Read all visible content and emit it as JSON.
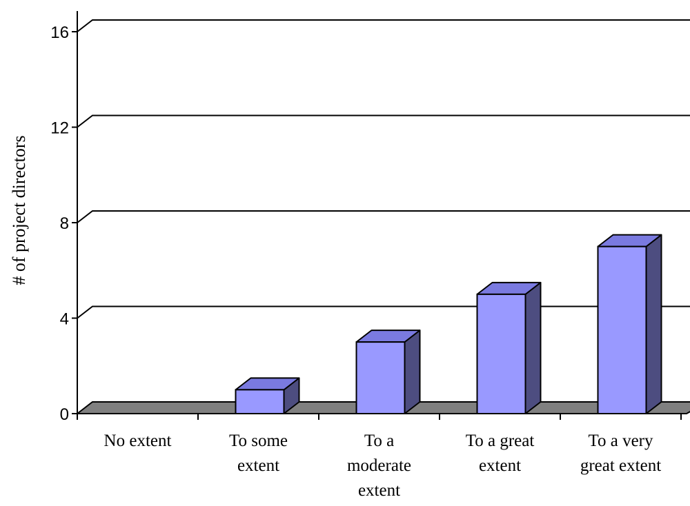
{
  "chart_data": {
    "type": "bar",
    "style": "3d-column",
    "categories": [
      [
        "No extent"
      ],
      [
        "To some",
        "extent"
      ],
      [
        "To a",
        "moderate",
        "extent"
      ],
      [
        "To a great",
        "extent"
      ],
      [
        "To a very",
        "great extent"
      ]
    ],
    "values": [
      0,
      1,
      3,
      5,
      7
    ],
    "title": "",
    "xlabel": "",
    "ylabel": "# of project directors",
    "ylim": [
      0,
      16
    ],
    "yticks": [
      0,
      4,
      8,
      12,
      16
    ],
    "grid": true,
    "legend": "none",
    "colors": {
      "bar_front": "#9999ff",
      "bar_top": "#7a7ae0",
      "bar_side": "#4d4d80",
      "floor": "#808080"
    }
  }
}
